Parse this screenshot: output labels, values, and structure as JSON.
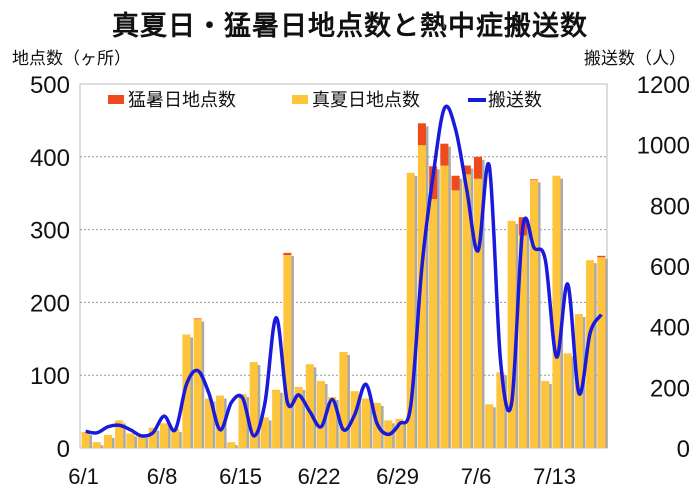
{
  "title": "真夏日・猛暑日地点数と熱中症搬送数",
  "left_axis_title": "地点数（ヶ所）",
  "right_axis_title": "搬送数（人）",
  "chart_data": {
    "type": "bar+line",
    "title": "真夏日・猛暑日地点数と熱中症搬送数",
    "ylabel_left": "地点数（ヶ所）",
    "ylabel_right": "搬送数（人）",
    "ylim_left": [
      0,
      500
    ],
    "ylim_right": [
      0,
      1200
    ],
    "yticks_left": [
      0,
      100,
      200,
      300,
      400,
      500
    ],
    "yticks_right": [
      0,
      200,
      400,
      600,
      800,
      1000,
      1200
    ],
    "xtick_labels": [
      "6/1",
      "6/8",
      "6/15",
      "6/22",
      "6/29",
      "7/6",
      "7/13"
    ],
    "xtick_index": [
      0,
      7,
      14,
      21,
      28,
      35,
      42
    ],
    "grid": true,
    "legend_position": "top-inside",
    "categories": [
      "6/1",
      "6/2",
      "6/3",
      "6/4",
      "6/5",
      "6/6",
      "6/7",
      "6/8",
      "6/9",
      "6/10",
      "6/11",
      "6/12",
      "6/13",
      "6/14",
      "6/15",
      "6/16",
      "6/17",
      "6/18",
      "6/19",
      "6/20",
      "6/21",
      "6/22",
      "6/23",
      "6/24",
      "6/25",
      "6/26",
      "6/27",
      "6/28",
      "6/29",
      "6/30",
      "7/1",
      "7/2",
      "7/3",
      "7/4",
      "7/5",
      "7/6",
      "7/7",
      "7/8",
      "7/9",
      "7/10",
      "7/11",
      "7/12",
      "7/13",
      "7/14",
      "7/15",
      "7/16",
      "7/17"
    ],
    "series": [
      {
        "name": "猛暑日地点数",
        "type": "bar-stacked",
        "color": "#ee4a1c",
        "values": [
          0,
          0,
          0,
          0,
          0,
          0,
          0,
          0,
          0,
          0,
          1,
          0,
          0,
          0,
          0,
          0,
          0,
          0,
          3,
          0,
          0,
          0,
          0,
          0,
          0,
          0,
          0,
          0,
          0,
          0,
          0,
          0,
          2,
          0,
          0,
          0,
          0,
          0,
          0,
          0,
          1,
          0,
          0,
          0,
          0,
          0,
          2
        ]
      },
      {
        "name": "真夏日地点数",
        "type": "bar-stacked",
        "color": "#fdc43c",
        "values": [
          22,
          8,
          18,
          38,
          20,
          18,
          28,
          34,
          26,
          156,
          177,
          68,
          72,
          8,
          74,
          118,
          42,
          80,
          265,
          84,
          115,
          92,
          70,
          132,
          78,
          68,
          62,
          38,
          40,
          378,
          416,
          342,
          388,
          354,
          376,
          370,
          60,
          104,
          312,
          292,
          368,
          92,
          374,
          130,
          184,
          258,
          262
        ]
      },
      {
        "name": "猛暑日地点数 (top segment)",
        "type": "bar-stacked-top",
        "color": "#ee4a1c",
        "values": [
          0,
          0,
          0,
          0,
          0,
          0,
          0,
          0,
          0,
          0,
          0,
          0,
          0,
          0,
          0,
          0,
          0,
          0,
          0,
          0,
          0,
          0,
          0,
          0,
          0,
          0,
          0,
          0,
          0,
          0,
          30,
          45,
          28,
          20,
          12,
          30,
          0,
          0,
          0,
          25,
          0,
          0,
          0,
          0,
          0,
          0,
          0
        ]
      },
      {
        "name": "搬送数",
        "type": "line",
        "axis": "right",
        "color": "#1a1adc",
        "values": [
          55,
          50,
          70,
          75,
          60,
          40,
          50,
          105,
          60,
          210,
          255,
          180,
          60,
          150,
          165,
          40,
          150,
          430,
          150,
          175,
          120,
          70,
          160,
          60,
          110,
          210,
          80,
          45,
          80,
          140,
          600,
          900,
          1120,
          1050,
          850,
          650,
          930,
          290,
          150,
          730,
          660,
          620,
          300,
          540,
          180,
          380,
          440
        ]
      }
    ]
  },
  "legend": [
    {
      "label": "猛暑日地点数",
      "color": "#ee4a1c",
      "kind": "box"
    },
    {
      "label": "真夏日地点数",
      "color": "#fdc43c",
      "kind": "box"
    },
    {
      "label": "搬送数",
      "color": "#1a1adc",
      "kind": "line"
    }
  ]
}
